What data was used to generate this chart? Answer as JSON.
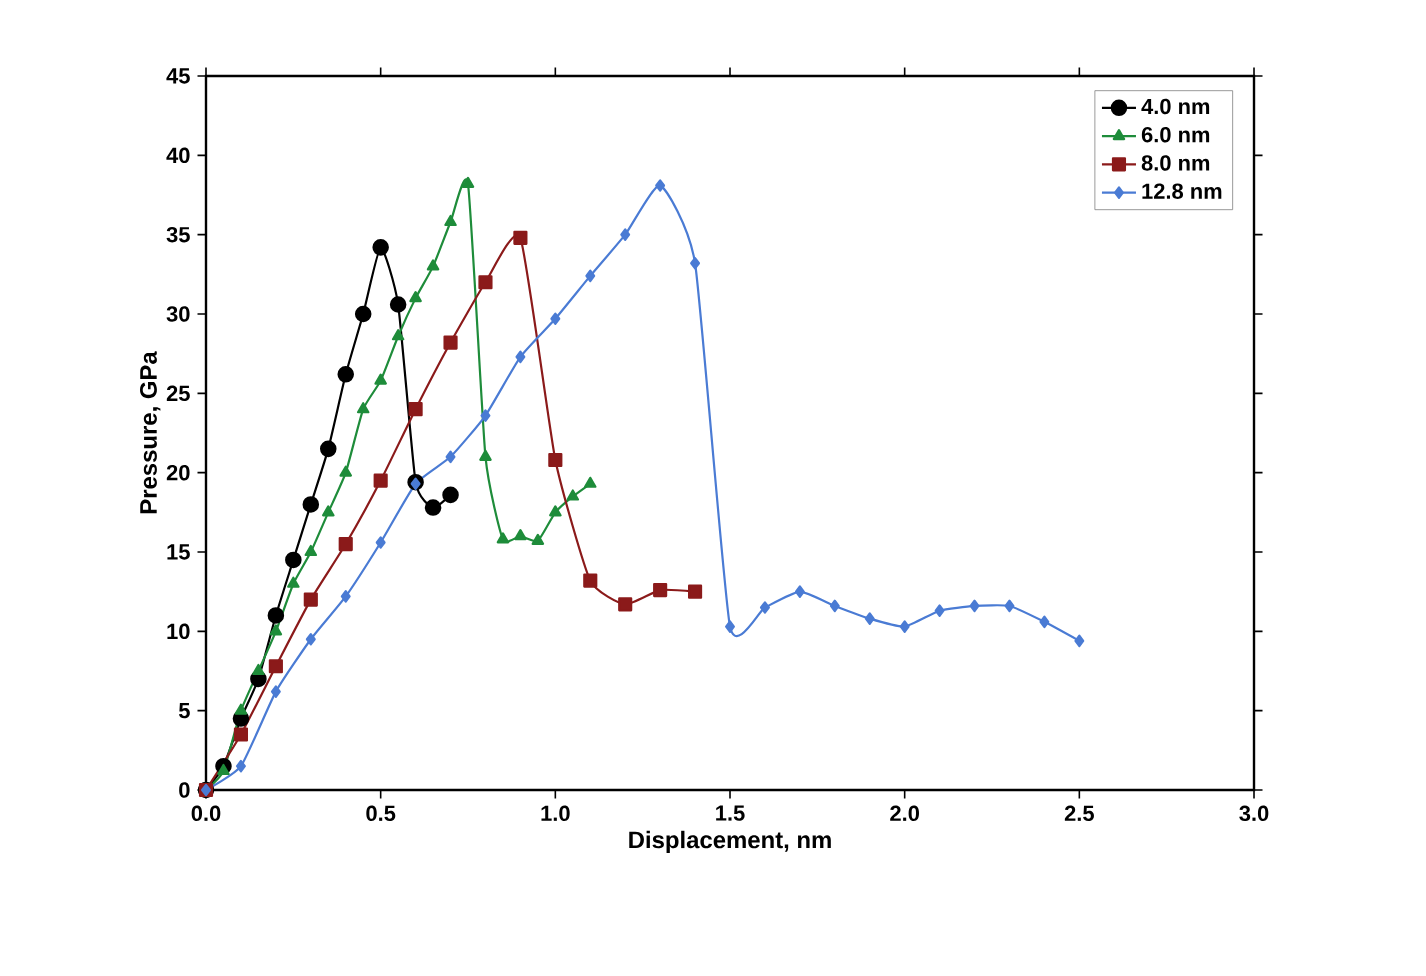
{
  "chart_data": {
    "type": "line",
    "xlabel": "Displacement, nm",
    "ylabel": "Pressure, GPa",
    "xlim": [
      0,
      3
    ],
    "ylim": [
      0,
      45
    ],
    "xticks": [
      {
        "value": 0,
        "label": "0.0"
      },
      {
        "value": 0.5,
        "label": "0.5"
      },
      {
        "value": 1,
        "label": "1.0"
      },
      {
        "value": 1.5,
        "label": "1.5"
      },
      {
        "value": 2,
        "label": "2.0"
      },
      {
        "value": 2.5,
        "label": "2.5"
      },
      {
        "value": 3,
        "label": "3.0"
      }
    ],
    "yticks": [
      0,
      5,
      10,
      15,
      20,
      25,
      30,
      35,
      40,
      45
    ],
    "legend": "top right",
    "line_style": "solid",
    "series": [
      {
        "name": "4.0 nm",
        "color": "#000000",
        "marker": "circle",
        "x": [
          0,
          0.05,
          0.1,
          0.15,
          0.2,
          0.25,
          0.3,
          0.35,
          0.4,
          0.45,
          0.5,
          0.55,
          0.6,
          0.65,
          0.7
        ],
        "values": [
          0,
          1.5,
          4.5,
          7,
          11,
          14.5,
          18,
          21.5,
          26.2,
          30,
          34.2,
          30.6,
          19.4,
          17.8,
          18.6
        ]
      },
      {
        "name": "6.0 nm",
        "color": "#1e8c3a",
        "marker": "triangle",
        "x": [
          0,
          0.05,
          0.1,
          0.15,
          0.2,
          0.25,
          0.3,
          0.35,
          0.4,
          0.45,
          0.5,
          0.55,
          0.6,
          0.65,
          0.7,
          0.75,
          0.8,
          0.85,
          0.9,
          0.95,
          1.0,
          1.05,
          1.1
        ],
        "values": [
          0,
          1.2,
          5,
          7.5,
          10,
          13,
          15,
          17.5,
          20,
          24,
          25.8,
          28.6,
          31,
          33,
          35.8,
          38.2,
          21,
          15.8,
          16,
          15.7,
          17.5,
          18.5,
          19.3
        ]
      },
      {
        "name": "8.0 nm",
        "color": "#8b1a1a",
        "marker": "square",
        "x": [
          0,
          0.1,
          0.2,
          0.3,
          0.4,
          0.5,
          0.6,
          0.7,
          0.8,
          0.9,
          1.0,
          1.1,
          1.2,
          1.3,
          1.4
        ],
        "values": [
          0,
          3.5,
          7.8,
          12,
          15.5,
          19.5,
          24,
          28.2,
          32,
          34.8,
          20.8,
          13.2,
          11.7,
          12.6,
          12.5
        ]
      },
      {
        "name": "12.8 nm",
        "color": "#4a7bd4",
        "marker": "diamond",
        "x": [
          0,
          0.1,
          0.2,
          0.3,
          0.4,
          0.5,
          0.6,
          0.7,
          0.8,
          0.9,
          1.0,
          1.1,
          1.2,
          1.3,
          1.4,
          1.5,
          1.6,
          1.7,
          1.8,
          1.9,
          2.0,
          2.1,
          2.2,
          2.3,
          2.4,
          2.5
        ],
        "values": [
          0,
          1.5,
          6.2,
          9.5,
          12.2,
          15.6,
          19.3,
          21,
          23.6,
          27.3,
          29.7,
          32.4,
          35,
          38.1,
          33.2,
          10.3,
          11.5,
          12.5,
          11.6,
          10.8,
          10.3,
          11.3,
          11.6,
          11.6,
          10.6,
          9.4
        ]
      }
    ]
  }
}
